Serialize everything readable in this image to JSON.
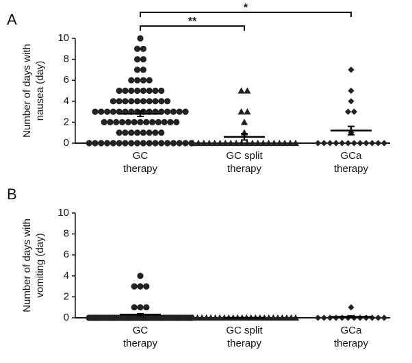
{
  "chart_data": [
    {
      "type": "dot",
      "panel": "A",
      "ylabel": [
        "Number of days with",
        "nausea (day)"
      ],
      "categories": [
        [
          "GC",
          "therapy"
        ],
        [
          "GC split",
          "therapy"
        ],
        [
          "GCa",
          "therapy"
        ]
      ],
      "ylim": [
        0,
        10
      ],
      "yticks": [
        0,
        2,
        4,
        6,
        8,
        10
      ],
      "color": "#222222",
      "groups": [
        {
          "marker": "circle",
          "mean": 2.8,
          "sem": 0.25,
          "values": [
            0,
            0,
            0,
            0,
            0,
            0,
            0,
            0,
            0,
            0,
            0,
            0,
            0,
            0,
            0,
            0,
            0,
            0,
            1,
            1,
            1,
            1,
            1,
            1,
            1,
            1,
            2,
            2,
            2,
            2,
            2,
            2,
            2,
            2,
            2,
            2,
            2,
            2,
            2,
            3,
            3,
            3,
            3,
            3,
            3,
            3,
            3,
            3,
            3,
            3,
            3,
            3,
            3,
            3,
            3,
            4,
            4,
            4,
            4,
            4,
            4,
            4,
            4,
            4,
            4,
            5,
            5,
            5,
            5,
            5,
            5,
            5,
            5,
            6,
            6,
            6,
            6,
            7,
            7,
            8,
            8,
            9,
            9,
            10
          ]
        },
        {
          "marker": "triangle",
          "mean": 0.6,
          "sem": 0.3,
          "values": [
            0,
            0,
            0,
            0,
            0,
            0,
            0,
            0,
            0,
            0,
            0,
            0,
            0,
            0,
            0,
            0,
            0,
            0,
            0,
            0,
            1,
            2,
            3,
            3,
            5,
            5
          ]
        },
        {
          "marker": "diamond",
          "mean": 1.2,
          "sem": 0.4,
          "values": [
            0,
            0,
            0,
            0,
            0,
            0,
            0,
            0,
            0,
            0,
            0,
            0,
            1,
            3,
            3,
            4,
            5,
            7
          ]
        }
      ],
      "annotations": [
        {
          "from": 0,
          "to": 1,
          "label": "**"
        },
        {
          "from": 0,
          "to": 2,
          "label": "*"
        }
      ]
    },
    {
      "type": "dot",
      "panel": "B",
      "ylabel": [
        "Number of days with",
        "vomiting (day)"
      ],
      "categories": [
        [
          "GC",
          "therapy"
        ],
        [
          "GC split",
          "therapy"
        ],
        [
          "GCa",
          "therapy"
        ]
      ],
      "ylim": [
        0,
        10
      ],
      "yticks": [
        0,
        2,
        4,
        6,
        8,
        10
      ],
      "color": "#222222",
      "groups": [
        {
          "marker": "circle",
          "mean": 0.3,
          "sem": 0.1,
          "values": [
            0,
            0,
            0,
            0,
            0,
            0,
            0,
            0,
            0,
            0,
            0,
            0,
            0,
            0,
            0,
            0,
            0,
            0,
            0,
            0,
            0,
            0,
            0,
            0,
            0,
            0,
            0,
            0,
            0,
            0,
            0,
            0,
            0,
            0,
            0,
            0,
            0,
            0,
            0,
            0,
            0,
            0,
            0,
            0,
            0,
            1,
            1,
            1,
            3,
            3,
            3,
            4
          ]
        },
        {
          "marker": "triangle",
          "mean": 0,
          "sem": 0,
          "values": [
            0,
            0,
            0,
            0,
            0,
            0,
            0,
            0,
            0,
            0,
            0,
            0,
            0,
            0,
            0,
            0,
            0,
            0,
            0,
            0,
            0,
            0,
            0,
            0
          ]
        },
        {
          "marker": "diamond",
          "mean": 0.1,
          "sem": 0.08,
          "values": [
            0,
            0,
            0,
            0,
            0,
            0,
            0,
            0,
            0,
            0,
            0,
            0,
            1
          ]
        }
      ]
    }
  ]
}
